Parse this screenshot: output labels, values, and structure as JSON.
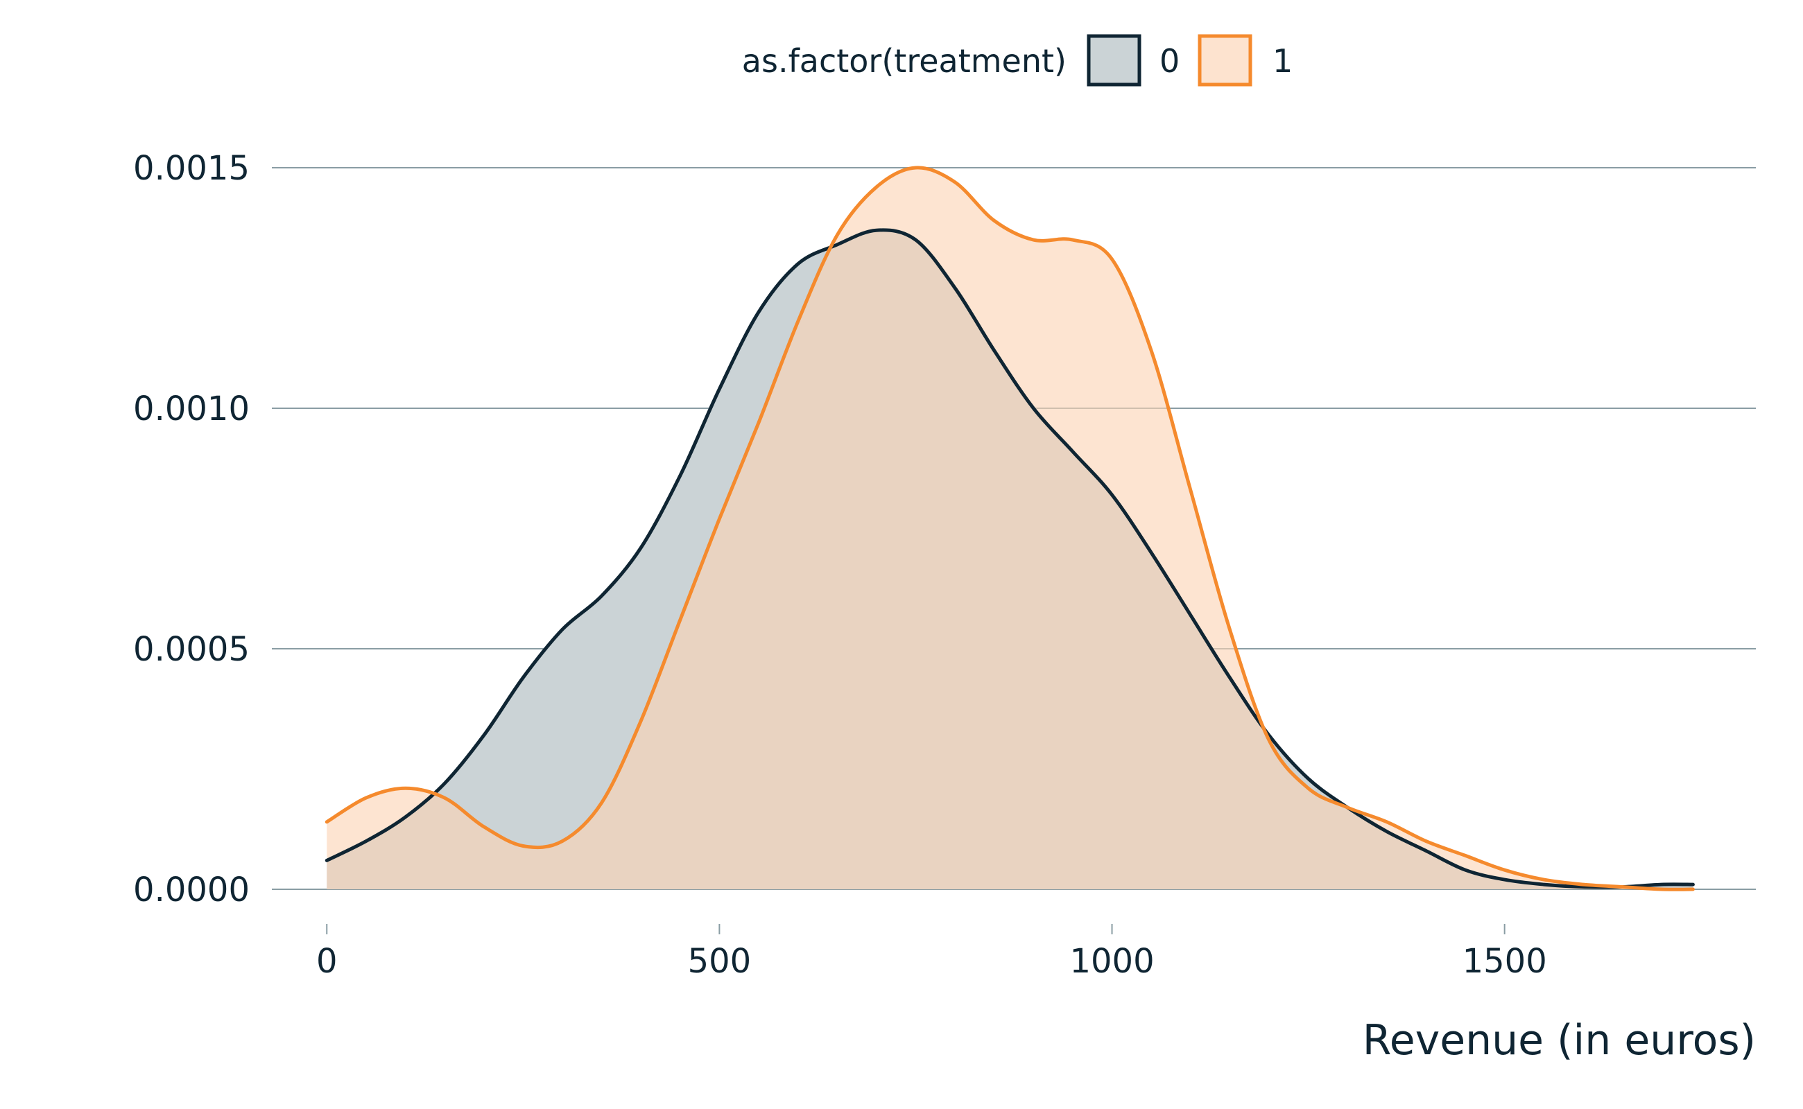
{
  "chart_data": {
    "type": "area",
    "title": "",
    "xlabel": "Revenue (in euros)",
    "ylabel": "",
    "xlim": [
      -70,
      1820
    ],
    "ylim": [
      0,
      0.0015
    ],
    "x_ticks": [
      0,
      500,
      1000,
      1500
    ],
    "x_tick_labels": [
      "0",
      "500",
      "1000",
      "1500"
    ],
    "y_ticks": [
      0,
      0.0005,
      0.001,
      0.0015
    ],
    "y_tick_labels": [
      "0.0000",
      "0.0005",
      "0.0010",
      "0.0015"
    ],
    "grid": "horizontal",
    "legend": {
      "title": "as.factor(treatment)",
      "placement": "top"
    },
    "series": [
      {
        "name": "0",
        "fill": "#cbd3d6",
        "fill_opacity": 1,
        "stroke": "#0f2533",
        "x": [
          0,
          50,
          100,
          150,
          200,
          250,
          300,
          350,
          400,
          450,
          500,
          550,
          600,
          650,
          700,
          750,
          800,
          850,
          900,
          950,
          1000,
          1050,
          1100,
          1150,
          1200,
          1250,
          1300,
          1350,
          1400,
          1450,
          1500,
          1550,
          1600,
          1650,
          1700,
          1740
        ],
        "values": [
          6e-05,
          0.0001,
          0.00015,
          0.00022,
          0.00032,
          0.00044,
          0.00054,
          0.00061,
          0.00071,
          0.00086,
          0.00104,
          0.0012,
          0.0013,
          0.00134,
          0.00137,
          0.00135,
          0.00125,
          0.00112,
          0.001,
          0.00091,
          0.00082,
          0.0007,
          0.00057,
          0.00044,
          0.00032,
          0.00023,
          0.00017,
          0.00012,
          8e-05,
          4e-05,
          2e-05,
          1e-05,
          5e-06,
          5e-06,
          1e-05,
          1e-05
        ]
      },
      {
        "name": "1",
        "fill": "#fcd3b4",
        "fill_opacity": 0.62,
        "stroke": "#f58a2d",
        "x": [
          0,
          50,
          100,
          150,
          200,
          250,
          300,
          350,
          400,
          450,
          500,
          550,
          600,
          650,
          700,
          750,
          800,
          850,
          900,
          950,
          1000,
          1050,
          1100,
          1150,
          1200,
          1250,
          1300,
          1350,
          1400,
          1450,
          1500,
          1550,
          1600,
          1650,
          1700,
          1740
        ],
        "values": [
          0.00014,
          0.00019,
          0.00021,
          0.00019,
          0.00013,
          9e-05,
          0.0001,
          0.00018,
          0.00035,
          0.00056,
          0.00077,
          0.00097,
          0.00118,
          0.00136,
          0.00146,
          0.0015,
          0.00147,
          0.00139,
          0.00135,
          0.00135,
          0.00131,
          0.00112,
          0.00083,
          0.00054,
          0.00031,
          0.00021,
          0.00017,
          0.00014,
          0.0001,
          7e-05,
          4e-05,
          2e-05,
          1e-05,
          5e-06,
          0,
          0
        ]
      }
    ]
  }
}
